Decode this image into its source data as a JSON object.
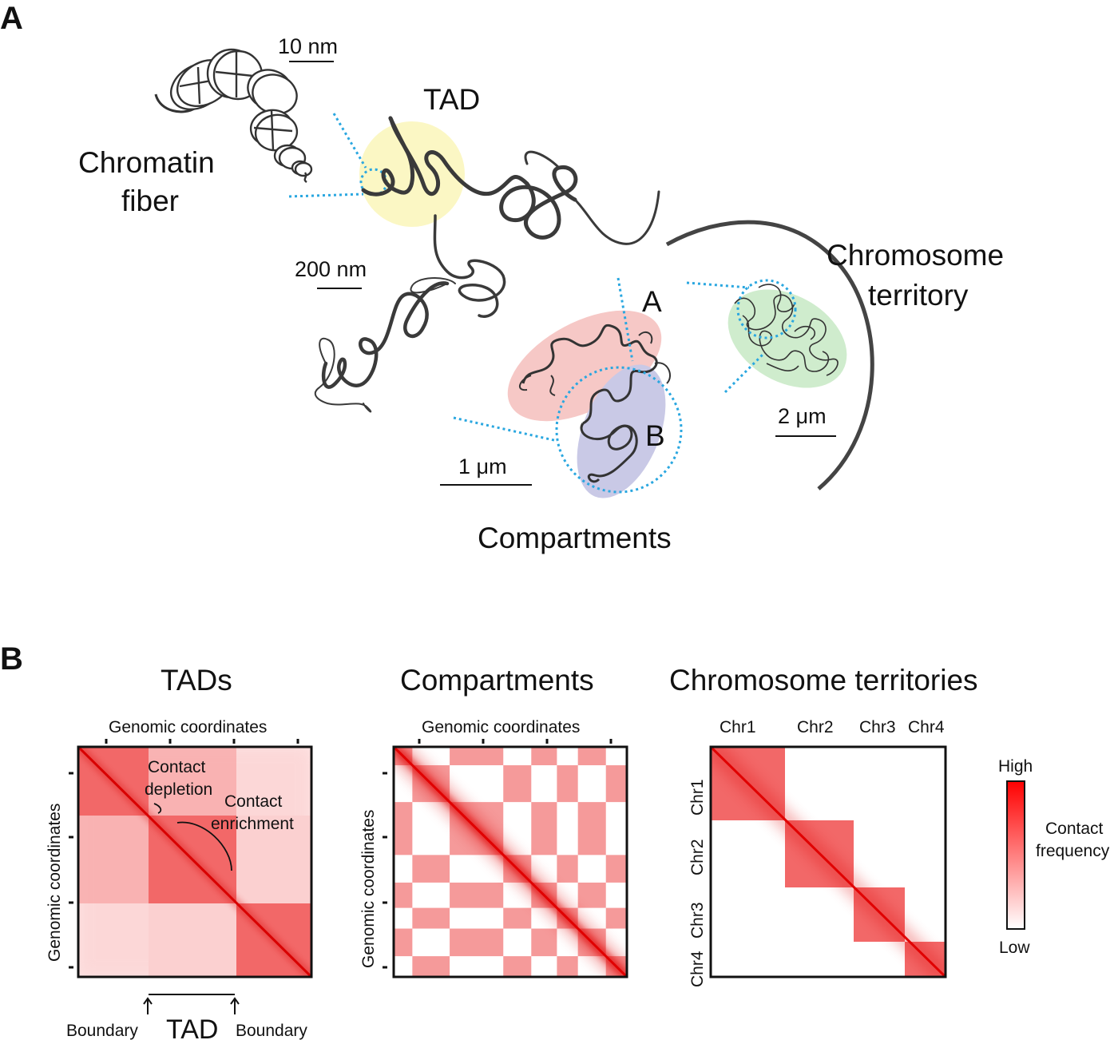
{
  "panel_a": {
    "label": "A",
    "chromatin_fiber": [
      "Chromatin",
      "fiber"
    ],
    "tad": "TAD",
    "chromosome_territory": [
      "Chromosome",
      "territory"
    ],
    "compartments": "Compartments",
    "compartment_a": "A",
    "compartment_b": "B",
    "scale_10nm": "10 nm",
    "scale_200nm": "200 nm",
    "scale_1um": "1 μm",
    "scale_2um": "2 μm",
    "colors": {
      "tad_halo": "#fbf7c4",
      "comp_a": "#f6c8c6",
      "comp_b": "#c9c9e6",
      "territory": "#cfeccd",
      "dotted": "#2aa7e0"
    }
  },
  "panel_b": {
    "label": "B",
    "tads": {
      "title": "TADs",
      "axis_label": "Genomic coordinates",
      "contact_depletion": [
        "Contact",
        "depletion"
      ],
      "contact_enrichment": [
        "Contact",
        "enrichment"
      ],
      "boundary_left": "Boundary",
      "boundary_right": "Boundary",
      "tad": "TAD"
    },
    "compartments": {
      "title": "Compartments",
      "axis_label": "Genomic coordinates"
    },
    "territories": {
      "title": "Chromosome territories",
      "chromosomes": [
        "Chr1",
        "Chr2",
        "Chr3",
        "Chr4"
      ]
    },
    "legend": {
      "high": "High",
      "low": "Low",
      "title": [
        "Contact",
        "frequency"
      ],
      "color_high": "#ff0000",
      "color_low": "#ffffff"
    }
  }
}
